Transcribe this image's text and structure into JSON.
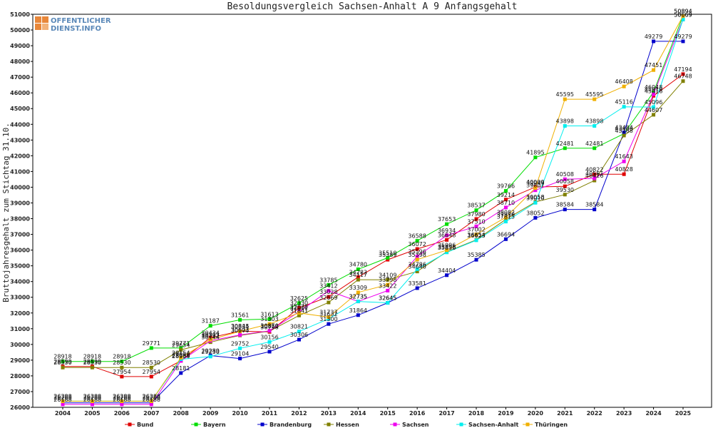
{
  "logo": {
    "line1": "OFFENTLICHER",
    "line2": "DIENST.INFO",
    "colors": {
      "text": "#5a88b8",
      "square": "#e8873a"
    }
  },
  "chart_data": {
    "type": "line",
    "title": "Besoldungsvergleich Sachsen-Anhalt A 9 Anfangsgehalt",
    "xlabel": "",
    "ylabel": "Bruttojahresgehalt zum Stichtag 31.10.",
    "x": [
      2004,
      2005,
      2006,
      2007,
      2008,
      2009,
      2010,
      2011,
      2012,
      2013,
      2014,
      2015,
      2016,
      2017,
      2018,
      2019,
      2020,
      2021,
      2022,
      2023,
      2024,
      2025
    ],
    "ylim": [
      26000,
      51000
    ],
    "yticks": [
      26000,
      27000,
      28000,
      29000,
      30000,
      31000,
      32000,
      33000,
      34000,
      35000,
      36000,
      37000,
      38000,
      39000,
      40000,
      41000,
      42000,
      43000,
      44000,
      45000,
      46000,
      47000,
      48000,
      49000,
      50000,
      51000
    ],
    "grid": false,
    "legend": "bottom",
    "series": [
      {
        "name": "Bund",
        "color": "#e00000",
        "values": [
          28599,
          28599,
          27954,
          27954,
          28964,
          30434,
          30845,
          30798,
          32330,
          33028,
          34283,
          35389,
          36072,
          36648,
          37980,
          39214,
          40009,
          40058,
          40822,
          40828,
          45816,
          47194
        ]
      },
      {
        "name": "Bayern",
        "color": "#00dd00",
        "values": [
          28918,
          28918,
          28918,
          29771,
          29771,
          31187,
          31561,
          31613,
          32625,
          33785,
          34780,
          35510,
          36588,
          37653,
          38537,
          39766,
          41895,
          42481,
          42481,
          43400,
          46048,
          50894
        ]
      },
      {
        "name": "Brandenburg",
        "color": "#0000cc",
        "values": [
          26288,
          26288,
          26288,
          26288,
          28181,
          29289,
          29104,
          29540,
          30306,
          31300,
          31864,
          32645,
          33581,
          34404,
          35385,
          36694,
          38052,
          38584,
          38584,
          43484,
          49279,
          49279
        ]
      },
      {
        "name": "Hessen",
        "color": "#808000",
        "values": [
          28530,
          28530,
          28530,
          28530,
          29654,
          30144,
          30574,
          30850,
          31841,
          32669,
          34117,
          34109,
          34640,
          35896,
          36654,
          37950,
          39058,
          39530,
          40426,
          43288,
          44607,
          46748
        ]
      },
      {
        "name": "Sachsen",
        "color": "#ee00ee",
        "values": [
          26188,
          26188,
          26188,
          26188,
          28950,
          30232,
          30603,
          30870,
          32070,
          33412,
          32735,
          33422,
          35596,
          36934,
          37510,
          38710,
          39807,
          40508,
          40561,
          41643,
          45919,
          50669
        ]
      },
      {
        "name": "Sachsen-Anhalt",
        "color": "#00eeee",
        "values": [
          26388,
          26388,
          26388,
          26388,
          29060,
          29230,
          29752,
          30156,
          30821,
          31632,
          32735,
          32645,
          34786,
          35856,
          36623,
          37815,
          39010,
          43898,
          43898,
          45116,
          45096,
          50669
        ]
      },
      {
        "name": "Thüringen",
        "color": "#f0b000",
        "values": [
          26388,
          26388,
          26388,
          26388,
          29154,
          30303,
          30834,
          31303,
          32001,
          31737,
          33309,
          33798,
          35398,
          35996,
          37002,
          38082,
          39949,
          45595,
          45595,
          46408,
          47451,
          50894
        ]
      }
    ]
  }
}
